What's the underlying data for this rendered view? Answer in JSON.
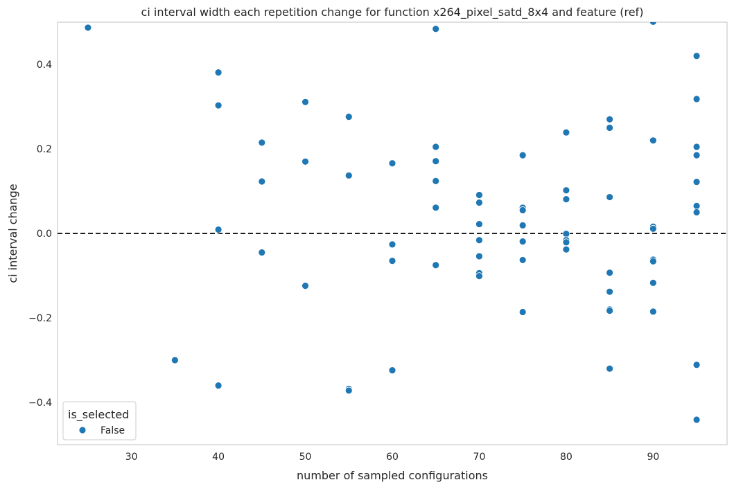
{
  "chart_data": {
    "type": "scatter",
    "title": "ci interval width each repetition change for function x264_pixel_satd_8x4 and feature (ref)",
    "xlabel": "number of sampled configurations",
    "ylabel": "ci interval change",
    "xlim": [
      21.5,
      98.5
    ],
    "ylim": [
      -0.5,
      0.5
    ],
    "xticks": [
      30,
      40,
      50,
      60,
      70,
      80,
      90
    ],
    "yticks": [
      -0.4,
      -0.2,
      0.0,
      0.2,
      0.4
    ],
    "xtick_labels": [
      "30",
      "40",
      "50",
      "60",
      "70",
      "80",
      "90"
    ],
    "ytick_labels": [
      "−0.4",
      "−0.2",
      "0.0",
      "0.2",
      "0.4"
    ],
    "reference_line": {
      "y": 0.0,
      "style": "dashed",
      "color": "#000000"
    },
    "grid": false,
    "legend": {
      "title": "is_selected",
      "placement": "lower-left",
      "entries": [
        "False"
      ]
    },
    "series": [
      {
        "name": "False",
        "color": "#1f77b4",
        "points": [
          [
            25,
            0.487
          ],
          [
            35,
            -0.3
          ],
          [
            40,
            0.381
          ],
          [
            40,
            0.303
          ],
          [
            40,
            0.009
          ],
          [
            40,
            -0.36
          ],
          [
            45,
            0.215
          ],
          [
            45,
            0.123
          ],
          [
            45,
            -0.045
          ],
          [
            50,
            0.311
          ],
          [
            50,
            0.17
          ],
          [
            50,
            -0.124
          ],
          [
            55,
            0.276
          ],
          [
            55,
            0.137
          ],
          [
            55,
            -0.368
          ],
          [
            55,
            -0.372
          ],
          [
            60,
            0.166
          ],
          [
            60,
            -0.026
          ],
          [
            60,
            -0.065
          ],
          [
            60,
            -0.324
          ],
          [
            65,
            0.484
          ],
          [
            65,
            0.205
          ],
          [
            65,
            0.171
          ],
          [
            65,
            0.124
          ],
          [
            65,
            0.061
          ],
          [
            65,
            -0.075
          ],
          [
            70,
            0.091
          ],
          [
            70,
            0.073
          ],
          [
            70,
            0.022
          ],
          [
            70,
            -0.016
          ],
          [
            70,
            -0.054
          ],
          [
            70,
            -0.094
          ],
          [
            70,
            -0.101
          ],
          [
            75,
            0.185
          ],
          [
            75,
            0.061
          ],
          [
            75,
            0.055
          ],
          [
            75,
            0.019
          ],
          [
            75,
            -0.019
          ],
          [
            75,
            -0.063
          ],
          [
            75,
            -0.186
          ],
          [
            80,
            0.239
          ],
          [
            80,
            0.102
          ],
          [
            80,
            0.081
          ],
          [
            80,
            -0.001
          ],
          [
            80,
            -0.016
          ],
          [
            80,
            -0.021
          ],
          [
            80,
            -0.038
          ],
          [
            85,
            0.27
          ],
          [
            85,
            0.25
          ],
          [
            85,
            0.086
          ],
          [
            85,
            -0.093
          ],
          [
            85,
            -0.138
          ],
          [
            85,
            -0.18
          ],
          [
            85,
            -0.183
          ],
          [
            85,
            -0.32
          ],
          [
            90,
            0.501
          ],
          [
            90,
            0.22
          ],
          [
            90,
            0.016
          ],
          [
            90,
            0.011
          ],
          [
            90,
            -0.062
          ],
          [
            90,
            -0.066
          ],
          [
            90,
            -0.117
          ],
          [
            90,
            -0.185
          ],
          [
            95,
            0.42
          ],
          [
            95,
            0.318
          ],
          [
            95,
            0.205
          ],
          [
            95,
            0.185
          ],
          [
            95,
            0.122
          ],
          [
            95,
            0.065
          ],
          [
            95,
            0.05
          ],
          [
            95,
            -0.311
          ],
          [
            95,
            -0.441
          ]
        ]
      }
    ]
  }
}
